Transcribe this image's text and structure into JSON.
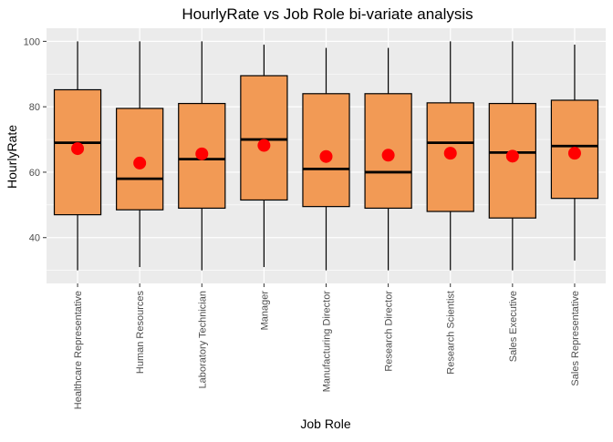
{
  "chart_data": {
    "type": "boxplot",
    "title": "HourlyRate vs Job Role bi-variate analysis",
    "xlabel": "Job Role",
    "ylabel": "HourlyRate",
    "ylim": [
      26,
      104
    ],
    "yticks": [
      40,
      60,
      80,
      100
    ],
    "grid": true,
    "legend": "none",
    "colors": {
      "panel_bg": "#EBEBEB",
      "grid": "#FFFFFF",
      "box_fill": "#F29A55",
      "box_stroke": "#000000",
      "mean_point": "#FF0000",
      "axis_text": "#4D4D4D",
      "title_text": "#000000"
    },
    "categories": [
      "Healthcare Representative",
      "Human Resources",
      "Laboratory Technician",
      "Manager",
      "Manufacturing Director",
      "Research Director",
      "Research Scientist",
      "Sales Executive",
      "Sales Representative"
    ],
    "boxes": [
      {
        "min": 30,
        "q1": 47,
        "median": 69,
        "q3": 85.2,
        "max": 100,
        "mean": 67.2
      },
      {
        "min": 31,
        "q1": 48.5,
        "median": 58,
        "q3": 79.5,
        "max": 100,
        "mean": 62.8
      },
      {
        "min": 30,
        "q1": 49,
        "median": 64,
        "q3": 81,
        "max": 100,
        "mean": 65.6
      },
      {
        "min": 31,
        "q1": 51.5,
        "median": 70,
        "q3": 89.5,
        "max": 99,
        "mean": 68.2
      },
      {
        "min": 30,
        "q1": 49.5,
        "median": 61,
        "q3": 84,
        "max": 98,
        "mean": 64.8
      },
      {
        "min": 30,
        "q1": 49,
        "median": 60,
        "q3": 84,
        "max": 98,
        "mean": 65.2
      },
      {
        "min": 30,
        "q1": 48,
        "median": 69,
        "q3": 81.2,
        "max": 100,
        "mean": 65.8
      },
      {
        "min": 30,
        "q1": 46,
        "median": 66,
        "q3": 81,
        "max": 100,
        "mean": 64.9
      },
      {
        "min": 33,
        "q1": 52,
        "median": 68,
        "q3": 82,
        "max": 99,
        "mean": 65.8
      }
    ]
  }
}
